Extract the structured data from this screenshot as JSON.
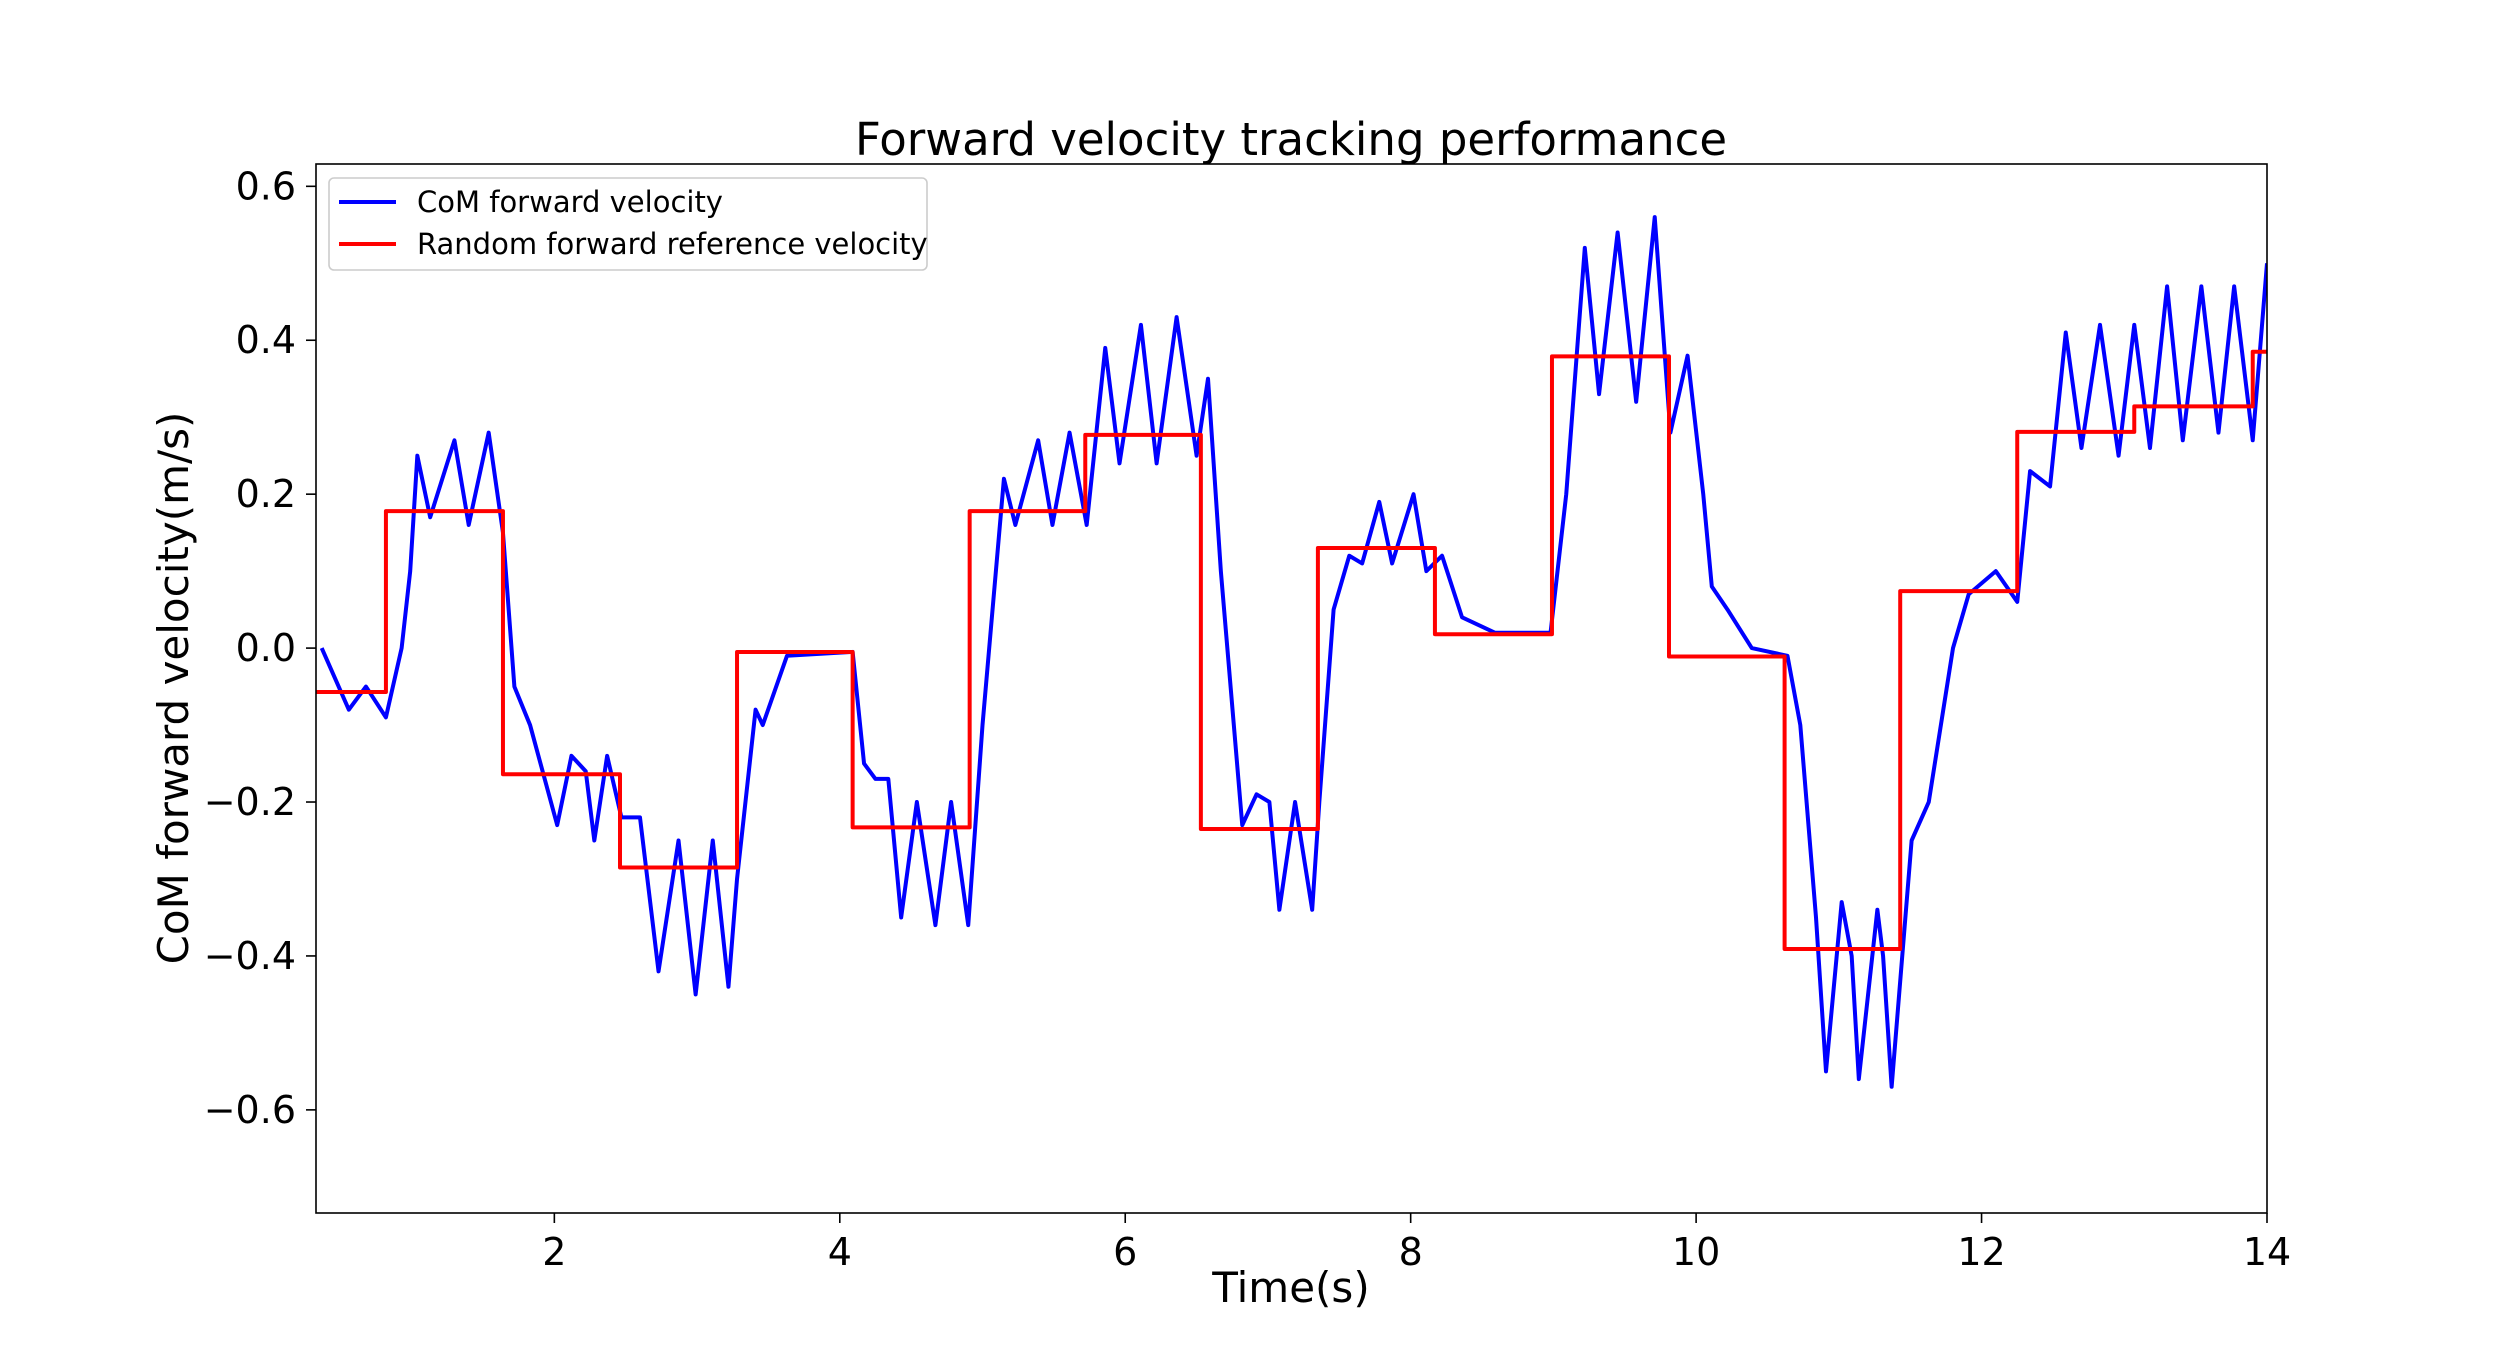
{
  "chart_data": {
    "type": "line",
    "title": "Forward velocity tracking performance",
    "x_label": "Time(s)",
    "y_label": "CoM forward velocity(m/s)",
    "xlim": [
      0.33,
      14
    ],
    "ylim": [
      -0.734,
      0.629
    ],
    "xticks": [
      2,
      4,
      6,
      8,
      10,
      12,
      14
    ],
    "yticks": [
      {
        "value": -0.6,
        "label": "−0.6"
      },
      {
        "value": -0.4,
        "label": "−0.4"
      },
      {
        "value": -0.2,
        "label": "−0.2"
      },
      {
        "value": 0,
        "label": "0.0"
      },
      0.2,
      0.4,
      0.6
    ],
    "legend": "upper left",
    "series": [
      {
        "name": "CoM forward velocity",
        "color": "#0000ff",
        "x": [
          0.37,
          0.56,
          0.68,
          0.82,
          0.93,
          0.99,
          1.04,
          1.13,
          1.3,
          1.4,
          1.54,
          1.64,
          1.72,
          1.83,
          2.02,
          2.12,
          2.22,
          2.28,
          2.37,
          2.47,
          2.6,
          2.73,
          2.87,
          2.99,
          3.11,
          3.22,
          3.28,
          3.41,
          3.46,
          3.63,
          4.09,
          4.17,
          4.25,
          4.34,
          4.43,
          4.54,
          4.67,
          4.78,
          4.9,
          5.0,
          5.15,
          5.23,
          5.39,
          5.49,
          5.61,
          5.73,
          5.86,
          5.96,
          6.11,
          6.22,
          6.36,
          6.5,
          6.58,
          6.67,
          6.82,
          6.92,
          7.01,
          7.08,
          7.19,
          7.31,
          7.36,
          7.46,
          7.57,
          7.66,
          7.78,
          7.87,
          8.02,
          8.11,
          8.22,
          8.36,
          8.59,
          8.98,
          9.09,
          9.22,
          9.32,
          9.45,
          9.58,
          9.71,
          9.82,
          9.94,
          10.05,
          10.11,
          10.22,
          10.39,
          10.64,
          10.73,
          10.84,
          10.91,
          11.02,
          11.09,
          11.14,
          11.27,
          11.31,
          11.37,
          11.51,
          11.63,
          11.8,
          11.91,
          12.1,
          12.25,
          12.34,
          12.48,
          12.59,
          12.7,
          12.83,
          12.96,
          13.07,
          13.18,
          13.3,
          13.41,
          13.54,
          13.66,
          13.77,
          13.9,
          14.0
        ],
        "values": [
          0.0,
          -0.08,
          -0.05,
          -0.09,
          0.0,
          0.1,
          0.25,
          0.17,
          0.27,
          0.16,
          0.28,
          0.15,
          -0.05,
          -0.1,
          -0.23,
          -0.14,
          -0.16,
          -0.25,
          -0.14,
          -0.22,
          -0.22,
          -0.42,
          -0.25,
          -0.45,
          -0.25,
          -0.44,
          -0.3,
          -0.08,
          -0.1,
          -0.01,
          -0.005,
          -0.15,
          -0.17,
          -0.17,
          -0.35,
          -0.2,
          -0.36,
          -0.2,
          -0.36,
          -0.1,
          0.22,
          0.16,
          0.27,
          0.16,
          0.28,
          0.16,
          0.39,
          0.24,
          0.42,
          0.24,
          0.43,
          0.25,
          0.35,
          0.1,
          -0.23,
          -0.19,
          -0.2,
          -0.34,
          -0.2,
          -0.34,
          -0.2,
          0.05,
          0.12,
          0.11,
          0.19,
          0.11,
          0.2,
          0.1,
          0.12,
          0.04,
          0.02,
          0.02,
          0.2,
          0.52,
          0.33,
          0.54,
          0.32,
          0.56,
          0.28,
          0.38,
          0.2,
          0.08,
          0.05,
          0.0,
          -0.01,
          -0.1,
          -0.35,
          -0.55,
          -0.33,
          -0.4,
          -0.56,
          -0.34,
          -0.4,
          -0.57,
          -0.25,
          -0.2,
          0.0,
          0.07,
          0.1,
          0.06,
          0.23,
          0.21,
          0.41,
          0.26,
          0.42,
          0.25,
          0.42,
          0.26,
          0.47,
          0.27,
          0.47,
          0.28,
          0.47,
          0.27,
          0.5
        ]
      },
      {
        "name": "Random forward reference velocity",
        "color": "#ff0000",
        "x": [
          0.33,
          0.82,
          0.82,
          1.64,
          1.64,
          2.46,
          2.46,
          3.28,
          3.28,
          4.09,
          4.09,
          4.91,
          4.91,
          5.72,
          5.72,
          6.53,
          6.53,
          7.35,
          7.35,
          8.17,
          8.17,
          8.99,
          8.99,
          9.81,
          9.81,
          10.62,
          10.62,
          11.43,
          11.43,
          12.25,
          12.25,
          13.07,
          13.07,
          13.9,
          13.9,
          14.0
        ],
        "values": [
          -0.057,
          -0.057,
          0.178,
          0.178,
          -0.164,
          -0.164,
          -0.285,
          -0.285,
          -0.005,
          -0.005,
          -0.233,
          -0.233,
          0.178,
          0.178,
          0.277,
          0.277,
          -0.235,
          -0.235,
          0.13,
          0.13,
          0.018,
          0.018,
          0.379,
          0.379,
          -0.011,
          -0.011,
          -0.391,
          -0.391,
          0.074,
          0.074,
          0.281,
          0.281,
          0.314,
          0.314,
          0.385,
          0.385
        ]
      }
    ]
  }
}
